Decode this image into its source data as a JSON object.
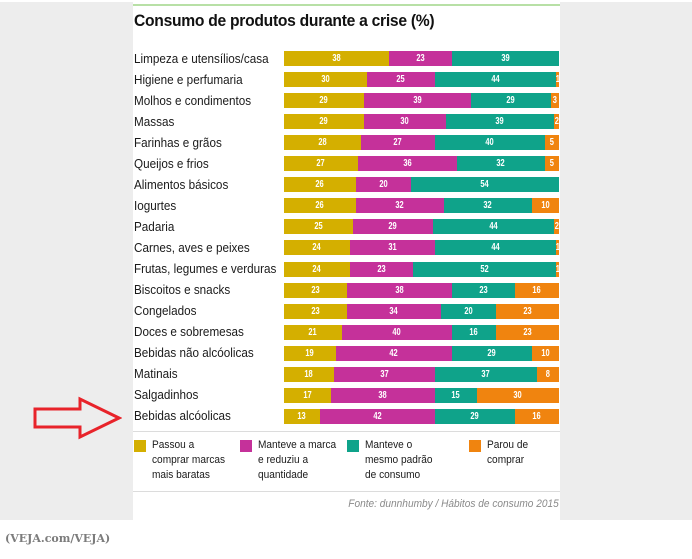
{
  "chart_data": {
    "type": "bar",
    "orientation": "horizontal",
    "stacked": true,
    "title": "Consumo de produtos durante a crise (%)",
    "xlabel": "",
    "ylabel": "",
    "xlim": [
      0,
      100
    ],
    "grid": false,
    "legend_position": "bottom",
    "categories": [
      "Limpeza e utensílios/casa",
      "Higiene e perfumaria",
      "Molhos e condimentos",
      "Massas",
      "Farinhas e grãos",
      "Queijos e frios",
      "Alimentos básicos",
      "Iogurtes",
      "Padaria",
      "Carnes, aves e peixes",
      "Frutas, legumes e verduras",
      "Biscoitos e snacks",
      "Congelados",
      "Doces e sobremesas",
      "Bebidas não alcóolicas",
      "Matinais",
      "Salgadinhos",
      "Bebidas alcóolicas"
    ],
    "series": [
      {
        "name": "Passou a comprar marcas mais baratas",
        "color": "#d4af00",
        "values": [
          38,
          30,
          29,
          29,
          28,
          27,
          26,
          26,
          25,
          24,
          24,
          23,
          23,
          21,
          19,
          18,
          17,
          13
        ]
      },
      {
        "name": "Manteve a marca e reduziu a quantidade",
        "color": "#c5319a",
        "values": [
          23,
          25,
          39,
          30,
          27,
          36,
          20,
          32,
          29,
          31,
          23,
          38,
          34,
          40,
          42,
          37,
          38,
          42
        ]
      },
      {
        "name": "Manteve o mesmo padrão de consumo",
        "color": "#0fa38a",
        "values": [
          39,
          44,
          29,
          39,
          40,
          32,
          54,
          32,
          44,
          44,
          52,
          23,
          20,
          16,
          29,
          37,
          15,
          29
        ]
      },
      {
        "name": "Parou de comprar",
        "color": "#f0840f",
        "values": [
          0,
          1,
          3,
          2,
          5,
          5,
          0,
          10,
          2,
          1,
          1,
          16,
          23,
          23,
          10,
          8,
          30,
          16
        ]
      }
    ]
  },
  "legend": [
    {
      "label": "Passou a comprar marcas mais baratas",
      "lines": [
        "Passou a",
        "comprar marcas",
        "mais baratas"
      ],
      "color": "#d4af00"
    },
    {
      "label": "Manteve a marca e reduziu a quantidade",
      "lines": [
        "Manteve a marca",
        "e reduziu a",
        "quantidade"
      ],
      "color": "#c5319a"
    },
    {
      "label": "Manteve o mesmo padrão de consumo",
      "lines": [
        "Manteve o",
        "mesmo padrão",
        "de consumo"
      ],
      "color": "#0fa38a"
    },
    {
      "label": "Parou de comprar",
      "lines": [
        "Parou de",
        "comprar"
      ],
      "color": "#f0840f"
    }
  ],
  "source": "Fonte: dunnhumby / Hábitos de consumo 2015",
  "credit": "(VEJA.com/VEJA)",
  "annotation": {
    "type": "arrow",
    "color": "#e8232a",
    "points_to": "Bebidas alcóolicas"
  }
}
